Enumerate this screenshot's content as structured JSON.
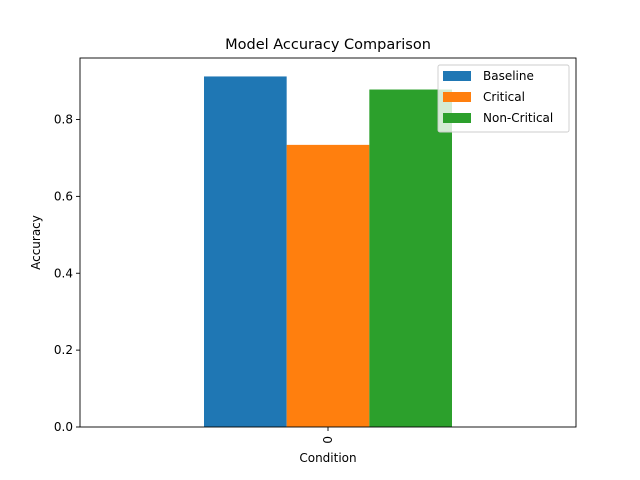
{
  "chart_data": {
    "type": "bar",
    "title": "Model Accuracy Comparison",
    "xlabel": "Condition",
    "ylabel": "Accuracy",
    "categories": [
      "0"
    ],
    "series": [
      {
        "name": "Baseline",
        "values": [
          0.912
        ],
        "color": "#1f77b4"
      },
      {
        "name": "Critical",
        "values": [
          0.734
        ],
        "color": "#ff7f0e"
      },
      {
        "name": "Non-Critical",
        "values": [
          0.878
        ],
        "color": "#2ca02c"
      }
    ],
    "ylim": [
      0,
      0.96
    ],
    "yticks": [
      0.0,
      0.2,
      0.4,
      0.6,
      0.8
    ],
    "ytick_labels": [
      "0.0",
      "0.2",
      "0.4",
      "0.6",
      "0.8"
    ],
    "grid": false,
    "legend_position": "top-right"
  }
}
